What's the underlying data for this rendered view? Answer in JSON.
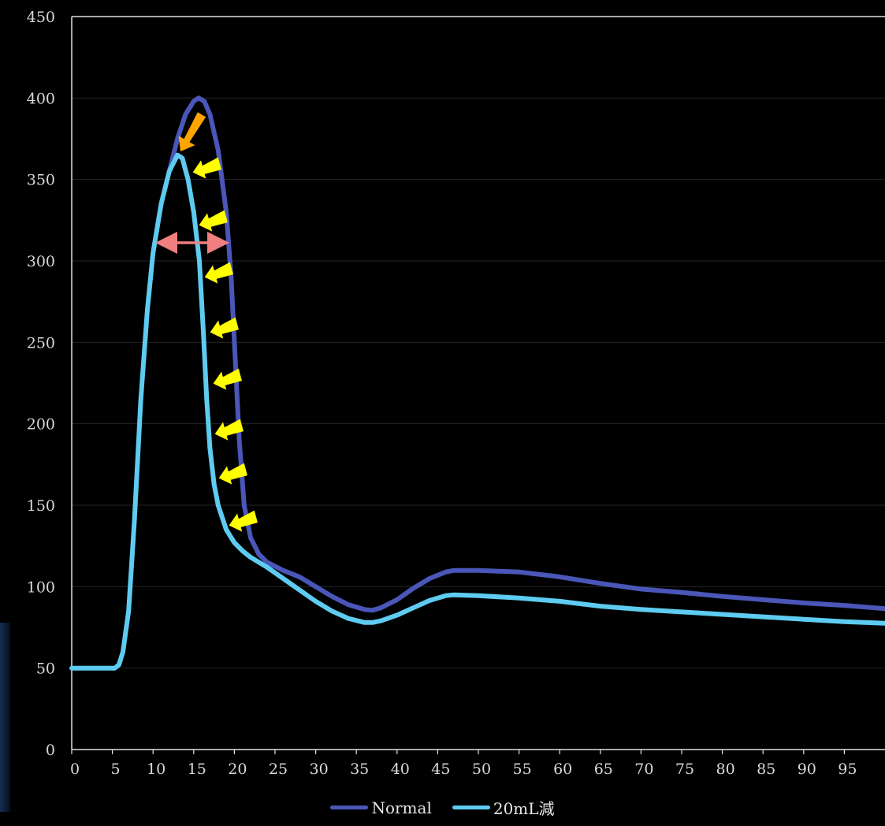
{
  "chart_data": {
    "type": "line",
    "title": "",
    "xlabel": "",
    "ylabel": "",
    "xlim": [
      0,
      100
    ],
    "ylim": [
      0,
      450
    ],
    "x_ticks": [
      0,
      5,
      10,
      15,
      20,
      25,
      30,
      35,
      40,
      45,
      50,
      55,
      60,
      65,
      70,
      75,
      80,
      85,
      90,
      95
    ],
    "y_ticks": [
      0,
      50,
      100,
      150,
      200,
      250,
      300,
      350,
      400,
      450
    ],
    "grid": "horizontal",
    "legend": "bottom",
    "series": [
      {
        "name": "Normal",
        "color": "#4a56b8",
        "points": [
          [
            12,
            355
          ],
          [
            13,
            375
          ],
          [
            14,
            390
          ],
          [
            15,
            398
          ],
          [
            15.6,
            400
          ],
          [
            16.3,
            398
          ],
          [
            17,
            390
          ],
          [
            18,
            368
          ],
          [
            19,
            330
          ],
          [
            19.6,
            290
          ],
          [
            20.2,
            230
          ],
          [
            20.6,
            190
          ],
          [
            21.2,
            150
          ],
          [
            22,
            130
          ],
          [
            23,
            120
          ],
          [
            24,
            115
          ],
          [
            26,
            110
          ],
          [
            28,
            106
          ],
          [
            30,
            100
          ],
          [
            32,
            94
          ],
          [
            34,
            89
          ],
          [
            36,
            86
          ],
          [
            37,
            85.5
          ],
          [
            38,
            87
          ],
          [
            40,
            92
          ],
          [
            42,
            99
          ],
          [
            44,
            105
          ],
          [
            46,
            109
          ],
          [
            47,
            110
          ],
          [
            50,
            110
          ],
          [
            55,
            109
          ],
          [
            60,
            106
          ],
          [
            65,
            102
          ],
          [
            70,
            98.5
          ],
          [
            75,
            96.5
          ],
          [
            80,
            94
          ],
          [
            85,
            92
          ],
          [
            90,
            90
          ],
          [
            95,
            88.5
          ],
          [
            100,
            86.5
          ]
        ]
      },
      {
        "name": "20mL減",
        "color": "#5ecbf0",
        "points": [
          [
            0,
            50
          ],
          [
            5.3,
            50
          ],
          [
            5.8,
            52
          ],
          [
            6.3,
            60
          ],
          [
            7,
            85
          ],
          [
            7.7,
            140
          ],
          [
            8.5,
            215
          ],
          [
            9.3,
            270
          ],
          [
            10,
            305
          ],
          [
            11,
            335
          ],
          [
            12,
            355
          ],
          [
            13,
            365
          ],
          [
            13.6,
            363
          ],
          [
            14.3,
            350
          ],
          [
            15,
            330
          ],
          [
            15.7,
            300
          ],
          [
            16.2,
            255
          ],
          [
            16.6,
            215
          ],
          [
            17,
            185
          ],
          [
            17.5,
            163
          ],
          [
            18,
            150
          ],
          [
            19,
            135
          ],
          [
            20,
            127
          ],
          [
            21,
            122
          ],
          [
            22,
            118
          ],
          [
            24,
            112
          ],
          [
            26,
            105
          ],
          [
            28,
            98
          ],
          [
            30,
            91
          ],
          [
            32,
            85
          ],
          [
            34,
            80.5
          ],
          [
            36,
            78
          ],
          [
            37,
            78
          ],
          [
            38,
            79
          ],
          [
            40,
            82.5
          ],
          [
            42,
            87
          ],
          [
            44,
            91.5
          ],
          [
            46,
            94.5
          ],
          [
            47,
            95
          ],
          [
            50,
            94.5
          ],
          [
            55,
            93
          ],
          [
            60,
            91
          ],
          [
            65,
            88
          ],
          [
            70,
            86
          ],
          [
            75,
            84.5
          ],
          [
            80,
            83
          ],
          [
            85,
            81.5
          ],
          [
            90,
            80
          ],
          [
            95,
            78.5
          ],
          [
            100,
            77.5
          ]
        ]
      }
    ]
  }
}
